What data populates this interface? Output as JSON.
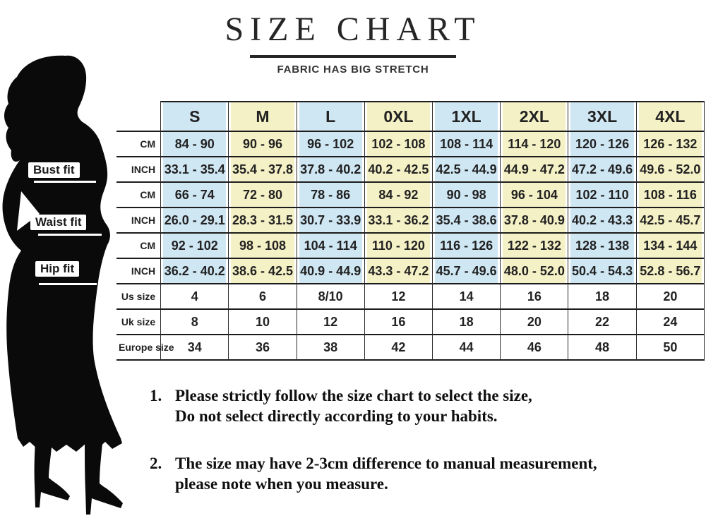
{
  "title": "SIZE CHART",
  "subtitle": "FABRIC HAS BIG STRETCH",
  "figure_labels": {
    "bust": "Bust fit",
    "waist": "Waist fit",
    "hip": "Hip fit"
  },
  "chart_data": {
    "type": "table",
    "title": "SIZE CHART",
    "subtitle": "FABRIC HAS BIG STRETCH",
    "columns": [
      "S",
      "M",
      "L",
      "0XL",
      "1XL",
      "2XL",
      "3XL",
      "4XL"
    ],
    "rows": [
      {
        "measure": "Bust fit",
        "label": "CM",
        "section": "bust",
        "values": [
          "84 - 90",
          "90 - 96",
          "96 - 102",
          "102 - 108",
          "108 - 114",
          "114 - 120",
          "120 - 126",
          "126 - 132"
        ]
      },
      {
        "measure": "Bust fit",
        "label": "INCH",
        "section": "bust",
        "values": [
          "33.1 - 35.4",
          "35.4 - 37.8",
          "37.8 - 40.2",
          "40.2 - 42.5",
          "42.5 - 44.9",
          "44.9 - 47.2",
          "47.2 - 49.6",
          "49.6 - 52.0"
        ]
      },
      {
        "measure": "Waist fit",
        "label": "CM",
        "section": "waist",
        "values": [
          "66 - 74",
          "72 - 80",
          "78 - 86",
          "84 - 92",
          "90 - 98",
          "96 - 104",
          "102 - 110",
          "108 - 116"
        ]
      },
      {
        "measure": "Waist fit",
        "label": "INCH",
        "section": "waist",
        "values": [
          "26.0 - 29.1",
          "28.3 - 31.5",
          "30.7 - 33.9",
          "33.1 - 36.2",
          "35.4 - 38.6",
          "37.8 - 40.9",
          "40.2 - 43.3",
          "42.5 - 45.7"
        ]
      },
      {
        "measure": "Hip fit",
        "label": "CM",
        "section": "hip",
        "values": [
          "92 - 102",
          "98 - 108",
          "104 - 114",
          "110 - 120",
          "116 - 126",
          "122 - 132",
          "128 - 138",
          "134 - 144"
        ]
      },
      {
        "measure": "Hip fit",
        "label": "INCH",
        "section": "hip",
        "values": [
          "36.2 - 40.2",
          "38.6 - 42.5",
          "40.9 - 44.9",
          "43.3 - 47.2",
          "45.7 - 49.6",
          "48.0 - 52.0",
          "50.4 - 54.3",
          "52.8 - 56.7"
        ]
      },
      {
        "measure": "",
        "label": "Us size",
        "section": "conversion",
        "values": [
          "4",
          "6",
          "8/10",
          "12",
          "14",
          "16",
          "18",
          "20"
        ]
      },
      {
        "measure": "",
        "label": "Uk size",
        "section": "conversion",
        "values": [
          "8",
          "10",
          "12",
          "16",
          "18",
          "20",
          "22",
          "24"
        ]
      },
      {
        "measure": "",
        "label": "Europe size",
        "section": "conversion",
        "values": [
          "34",
          "36",
          "38",
          "42",
          "44",
          "46",
          "48",
          "50"
        ]
      }
    ],
    "column_band_colors": [
      "blue",
      "yellow",
      "blue",
      "yellow",
      "blue",
      "yellow",
      "blue",
      "yellow"
    ],
    "notes": [
      "Please strictly follow the size chart to select the size, Do not select directly according to your habits.",
      "The size may have 2-3cm difference to manual measurement, please note when you measure."
    ]
  },
  "notes": {
    "items": [
      {
        "num": "1.",
        "line1": "Please strictly follow the size chart to select the size,",
        "line2": "Do not select directly according to your habits."
      },
      {
        "num": "2.",
        "line1": "The size may have 2-3cm difference  to manual measurement,",
        "line2": "please note when you measure."
      }
    ]
  },
  "colors": {
    "band_blue": "#cfe6f3",
    "band_yellow": "#f5f1c6",
    "border": "#1c1c1c",
    "silhouette": "#0a0a0a",
    "title_text": "#262626"
  }
}
